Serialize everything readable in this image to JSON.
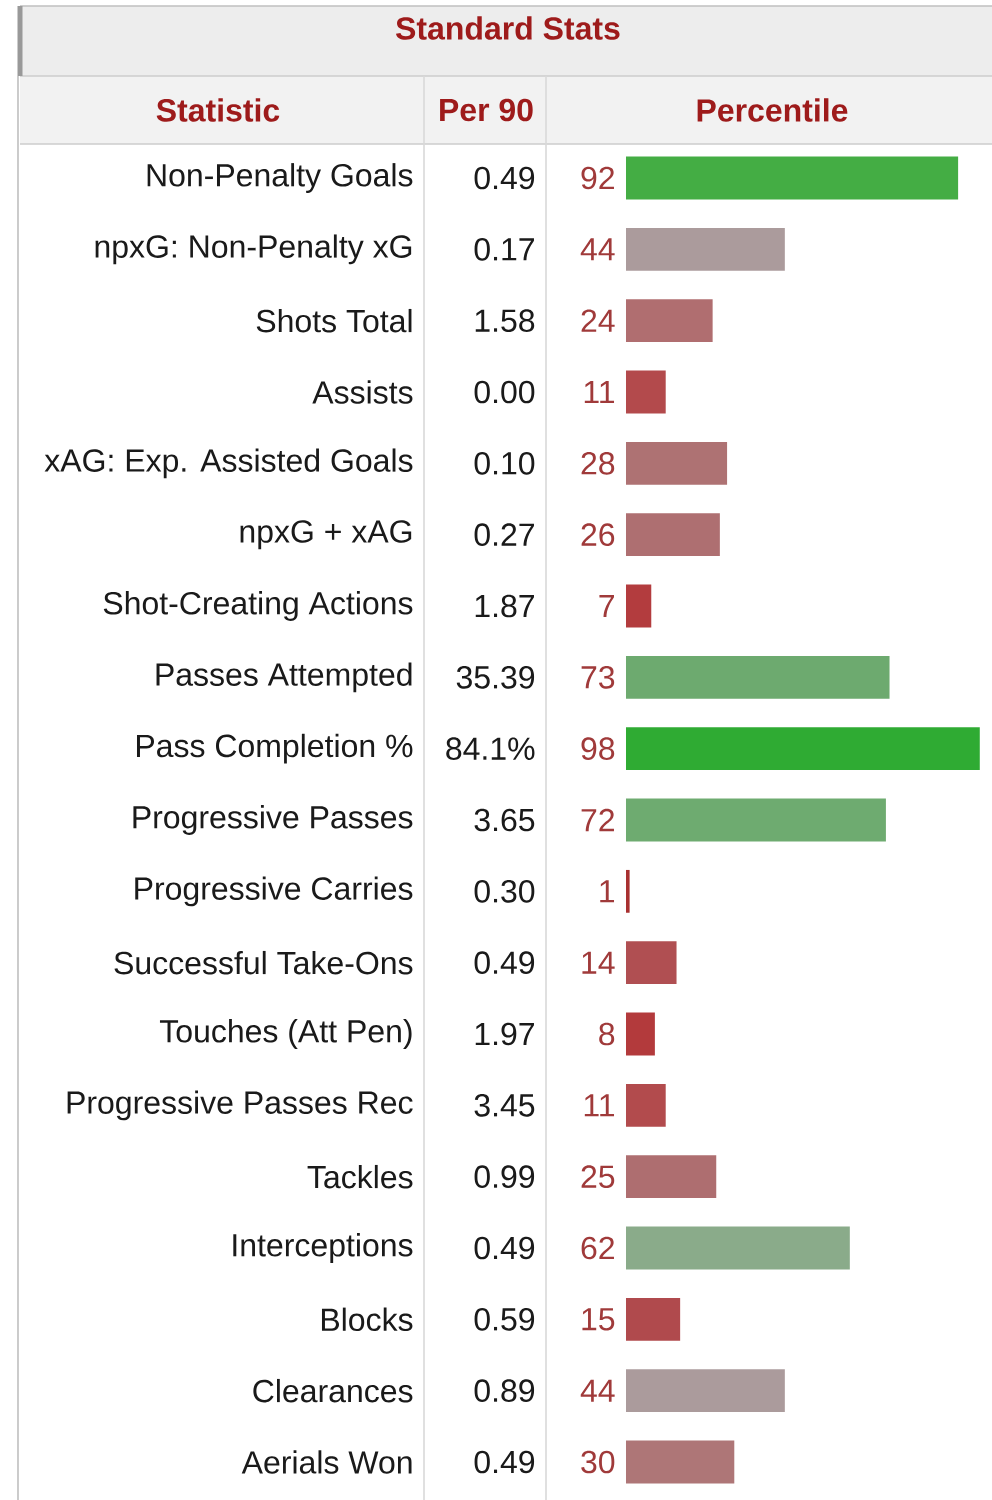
{
  "chart_data": {
    "type": "bar",
    "orientation": "horizontal",
    "title": "Standard Stats",
    "ylabel": "Statistic",
    "xlabel": "Percentile",
    "categories": [
      "Non-Penalty Goals",
      "npxG: Non-Penalty xG",
      "Shots Total",
      "Assists",
      "xAG: Exp. Assisted Goals",
      "npxG + xAG",
      "Shot-Creating Actions",
      "Passes Attempted",
      "Pass Completion %",
      "Progressive Passes",
      "Progressive Carries",
      "Successful Take-Ons",
      "Touches (Att Pen)",
      "Progressive Passes Rec",
      "Tackles",
      "Interceptions",
      "Blocks",
      "Clearances",
      "Aerials Won"
    ],
    "values": [
      92,
      44,
      24,
      11,
      28,
      26,
      7,
      73,
      98,
      72,
      1,
      14,
      8,
      11,
      25,
      62,
      15,
      44,
      30
    ],
    "colors": [
      "#44ad44",
      "#ab9b9c",
      "#b06e70",
      "#b34a4c",
      "#ae7273",
      "#ae6f71",
      "#b33c3e",
      "#6daa6f",
      "#2fab33",
      "#6eab70",
      "#a83030",
      "#b04f52",
      "#b33a3c",
      "#b24b4d",
      "#ae6e70",
      "#8aab8a",
      "#b04a4d",
      "#ab9b9c",
      "#ae7677"
    ],
    "xlim": [
      0,
      100
    ],
    "tick_labels": "y",
    "data_labels": true,
    "annotations": [
      "Per 90",
      "0.49",
      "0.17",
      "1.58",
      "0.00",
      "0.10",
      "0.27",
      "1.87",
      "35.39",
      "84.1%",
      "3.65",
      "0.30",
      "0.49",
      "1.97",
      "3.45",
      "0.99",
      "0.49",
      "0.59",
      "0.89",
      "0.49"
    ]
  }
}
